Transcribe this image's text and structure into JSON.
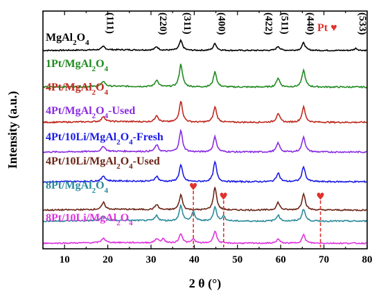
{
  "chart_data": {
    "type": "line",
    "xlabel": "2 θ (°)",
    "ylabel": "Intensity (a.u.)",
    "xlim": [
      5,
      80
    ],
    "xticks": [
      10,
      20,
      30,
      40,
      50,
      60,
      70,
      80
    ],
    "y_ticks_shown": false,
    "grid": false,
    "reflections": [
      {
        "label": "(111)",
        "x": 19.0
      },
      {
        "label": "(220)",
        "x": 31.3
      },
      {
        "label": "(311)",
        "x": 36.9
      },
      {
        "label": "(400)",
        "x": 44.8
      },
      {
        "label": "(422)",
        "x": 55.7
      },
      {
        "label": "(511)",
        "x": 59.4
      },
      {
        "label": "(440)",
        "x": 65.3
      },
      {
        "label": "(533)",
        "x": 77.4
      }
    ],
    "pt_marker": {
      "label": "Pt ♥",
      "color": "#e0312b",
      "positions": [
        39.8,
        46.8,
        69.2
      ],
      "style": "dashed-vertical-with-heart"
    },
    "series": [
      {
        "name": "MgAl2O4",
        "label_parts": [
          [
            "MgAl",
            false
          ],
          [
            "2",
            true
          ],
          [
            "O",
            false
          ],
          [
            "4",
            true
          ]
        ],
        "color": "#000000",
        "peaks": [
          [
            19.0,
            0.25
          ],
          [
            31.3,
            0.25
          ],
          [
            36.9,
            0.7
          ],
          [
            44.8,
            0.5
          ],
          [
            59.4,
            0.3
          ],
          [
            65.3,
            0.55
          ],
          [
            77.4,
            0.15
          ]
        ]
      },
      {
        "name": "1Pt/MgAl2O4",
        "label_parts": [
          [
            "1Pt/MgAl",
            false
          ],
          [
            "2",
            true
          ],
          [
            "O",
            false
          ],
          [
            "4",
            true
          ]
        ],
        "color": "#1f8a1f",
        "peaks": [
          [
            19.0,
            0.35
          ],
          [
            31.3,
            0.45
          ],
          [
            36.9,
            1.5
          ],
          [
            44.8,
            1.0
          ],
          [
            59.4,
            0.6
          ],
          [
            65.3,
            1.1
          ]
        ]
      },
      {
        "name": "4Pt/MgAl2O4",
        "label_parts": [
          [
            "4Pt/MgAl",
            false
          ],
          [
            "2",
            true
          ],
          [
            "O",
            false
          ],
          [
            "4",
            true
          ]
        ],
        "color": "#c0281e",
        "peaks": [
          [
            19.0,
            0.35
          ],
          [
            31.3,
            0.45
          ],
          [
            36.9,
            1.4
          ],
          [
            44.8,
            1.0
          ],
          [
            59.4,
            0.6
          ],
          [
            65.3,
            1.0
          ]
        ]
      },
      {
        "name": "4Pt/MgAl2O4-Used",
        "label_parts": [
          [
            "4Pt/MgAl",
            false
          ],
          [
            "2",
            true
          ],
          [
            "O",
            false
          ],
          [
            "4",
            true
          ],
          [
            "-Used",
            false
          ]
        ],
        "color": "#8a2be2",
        "peaks": [
          [
            19.0,
            0.35
          ],
          [
            31.3,
            0.45
          ],
          [
            36.9,
            1.4
          ],
          [
            44.8,
            1.0
          ],
          [
            59.4,
            0.6
          ],
          [
            65.3,
            1.0
          ]
        ]
      },
      {
        "name": "4Pt/10Li/MgAl2O4-Fresh",
        "label_parts": [
          [
            "4Pt/10Li/MgAl",
            false
          ],
          [
            "2",
            true
          ],
          [
            "O",
            false
          ],
          [
            "4",
            true
          ],
          [
            "-Fresh",
            false
          ]
        ],
        "color": "#1a1ae6",
        "peaks": [
          [
            19.0,
            0.35
          ],
          [
            31.3,
            0.35
          ],
          [
            36.9,
            1.1
          ],
          [
            44.8,
            1.3
          ],
          [
            59.4,
            0.6
          ],
          [
            65.3,
            1.0
          ]
        ]
      },
      {
        "name": "4Pt/10Li/MgAl2O4-Used",
        "label_parts": [
          [
            "4Pt/10Li/MgAl",
            false
          ],
          [
            "2",
            true
          ],
          [
            "O",
            false
          ],
          [
            "4",
            true
          ],
          [
            "-Used",
            false
          ]
        ],
        "color": "#6b2416",
        "peaks": [
          [
            19.0,
            0.45
          ],
          [
            31.3,
            0.35
          ],
          [
            36.9,
            1.0
          ],
          [
            44.8,
            1.5
          ],
          [
            59.4,
            0.5
          ],
          [
            65.3,
            1.1
          ]
        ]
      },
      {
        "name": "8Pt/MgAl2O4",
        "label_parts": [
          [
            "8Pt/MgAl",
            false
          ],
          [
            "2",
            true
          ],
          [
            "O",
            false
          ],
          [
            "4",
            true
          ]
        ],
        "color": "#2a8a9a",
        "peaks": [
          [
            19.0,
            0.3
          ],
          [
            31.3,
            0.35
          ],
          [
            36.9,
            1.0
          ],
          [
            39.8,
            0.6
          ],
          [
            44.8,
            0.9
          ],
          [
            46.8,
            0.3
          ],
          [
            59.4,
            0.4
          ],
          [
            65.3,
            0.8
          ]
        ]
      },
      {
        "name": "8Pt/10Li/MgAl2O4",
        "label_parts": [
          [
            "8Pt/10Li/MgAl",
            false
          ],
          [
            "2",
            true
          ],
          [
            "O",
            false
          ],
          [
            "4",
            true
          ]
        ],
        "color": "#dd33dd",
        "peaks": [
          [
            19.0,
            0.35
          ],
          [
            31.3,
            0.3
          ],
          [
            32.8,
            0.3
          ],
          [
            36.9,
            0.7
          ],
          [
            39.8,
            0.3
          ],
          [
            44.8,
            0.9
          ],
          [
            59.4,
            0.3
          ],
          [
            65.3,
            0.6
          ]
        ]
      }
    ]
  }
}
